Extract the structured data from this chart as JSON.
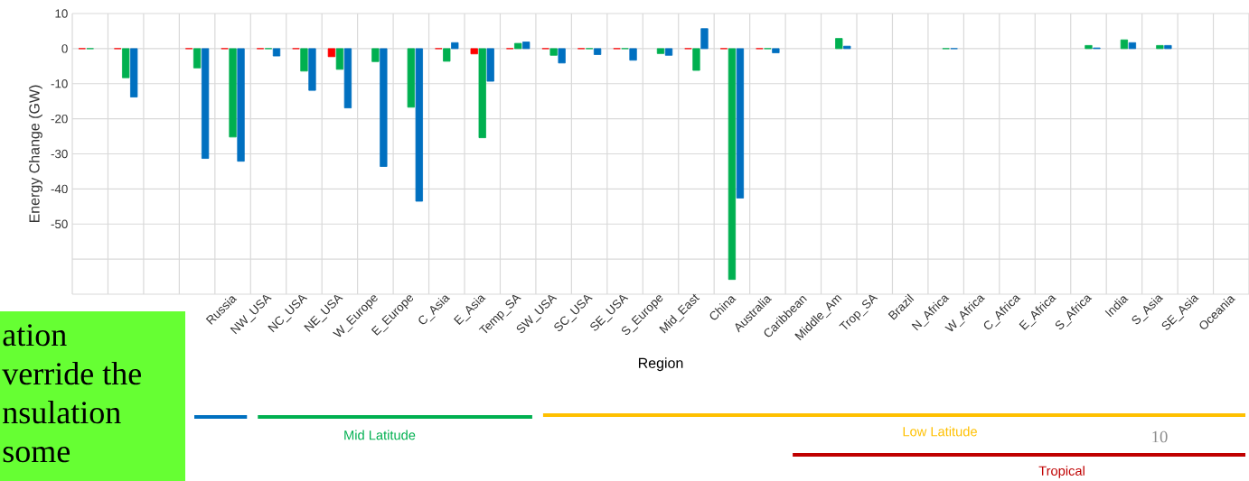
{
  "chart_data": {
    "type": "bar",
    "xlabel": "Region",
    "ylabel": "Energy Change (GW)",
    "categories": [
      null,
      null,
      null,
      null,
      "Russia",
      "NW_USA",
      "NC_USA",
      "NE_USA",
      "W_Europe",
      "E_Europe",
      "C_Asia",
      "E_Asia",
      "Temp_SA",
      "SW_USA",
      "SC_USA",
      "SE_USA",
      "S_Europe",
      "Mid_East",
      "China",
      "Australia",
      "Caribbean",
      "Middle_Am",
      "Trop_SA",
      "Brazil",
      "N_Africa",
      "W_Africa",
      "C_Africa",
      "E_Africa",
      "S_Africa",
      "India",
      "S_Asia",
      "SE_Asia",
      "Oceania"
    ],
    "series": [
      {
        "color": "#ff0000",
        "values": [
          0,
          0,
          null,
          0,
          0,
          0,
          0,
          -2.3,
          null,
          null,
          0,
          -1.5,
          0,
          0,
          0,
          0,
          null,
          0,
          0,
          0,
          null,
          null,
          null,
          null,
          null,
          null,
          null,
          null,
          null,
          null,
          null,
          null,
          null
        ]
      },
      {
        "color": "#00b050",
        "values": [
          0,
          -8.3,
          null,
          -5.5,
          -25.2,
          0,
          -6.4,
          -5.9,
          -3.7,
          -16.7,
          -3.6,
          -25.4,
          1.5,
          -1.9,
          0,
          0,
          -1.4,
          -6.2,
          -65.8,
          0,
          null,
          2.9,
          null,
          null,
          0,
          null,
          null,
          null,
          0.9,
          2.5,
          0.9,
          null,
          null
        ]
      },
      {
        "color": "#0070c0",
        "values": [
          null,
          -13.8,
          null,
          -31.3,
          -32.1,
          -2.1,
          -11.9,
          -16.9,
          -33.6,
          -43.5,
          1.7,
          -9.3,
          1.9,
          -4.1,
          -1.7,
          -3.3,
          -1.9,
          5.7,
          -42.6,
          -1.2,
          null,
          0.7,
          null,
          null,
          0,
          null,
          null,
          null,
          0.2,
          1.7,
          0.9,
          null,
          null
        ]
      }
    ],
    "ylim": [
      -70,
      10
    ],
    "yticks": [
      {
        "value": -70,
        "label": null
      },
      {
        "value": -60,
        "label": null
      },
      -50,
      -40,
      -30,
      -20,
      -10,
      0,
      10
    ],
    "grid": true,
    "annotations": [
      "ation",
      "verride the",
      "nsulation",
      "some",
      "Mid Latitude",
      "Low Latitude",
      "Tropical",
      "10"
    ]
  }
}
